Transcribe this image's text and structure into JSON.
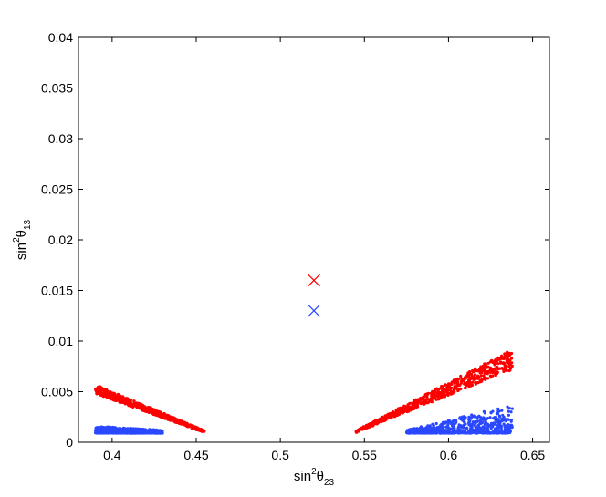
{
  "chart_data": {
    "type": "scatter",
    "xlabel": {
      "base": "sin",
      "sup": "2",
      "greek": "θ",
      "sub": "23"
    },
    "ylabel": {
      "base": "sin",
      "sup": "2",
      "greek": "θ",
      "sub": "13"
    },
    "xlim": [
      0.38,
      0.66
    ],
    "ylim": [
      0,
      0.04
    ],
    "xticks": [
      0.4,
      0.45,
      0.5,
      0.55,
      0.6,
      0.65
    ],
    "xtick_labels": [
      "0.4",
      "0.45",
      "0.5",
      "0.55",
      "0.6",
      "0.65"
    ],
    "yticks": [
      0,
      0.005,
      0.01,
      0.015,
      0.02,
      0.025,
      0.03,
      0.035,
      0.04
    ],
    "ytick_labels": [
      "0",
      "0.005",
      "0.01",
      "0.015",
      "0.02",
      "0.025",
      "0.03",
      "0.035",
      "0.04"
    ],
    "grid": false,
    "legend": "none",
    "series": [
      {
        "color": "#ff0000",
        "marker": "dot",
        "bands": [
          {
            "x_range": [
              0.39,
              0.455
            ],
            "y_at_start": [
              0.0048,
              0.0057
            ],
            "y_at_end": [
              0.00095,
              0.00115
            ]
          },
          {
            "x_range": [
              0.545,
              0.638
            ],
            "y_at_start": [
              0.00095,
              0.00115
            ],
            "y_at_end": [
              0.0072,
              0.0092
            ]
          }
        ]
      },
      {
        "color": "#2a48ff",
        "marker": "dot",
        "bands": [
          {
            "x_range": [
              0.39,
              0.43
            ],
            "y_at_start": [
              0.0009,
              0.0016
            ],
            "y_at_end": [
              0.0009,
              0.0012
            ]
          },
          {
            "x_range": [
              0.575,
              0.638
            ],
            "y_at_start": [
              0.0009,
              0.0012
            ],
            "y_at_end": [
              0.0009,
              0.0037
            ]
          }
        ]
      }
    ],
    "markers": [
      {
        "x": 0.52,
        "y": 0.016,
        "symbol": "x",
        "color": "#ff0000"
      },
      {
        "x": 0.52,
        "y": 0.013,
        "symbol": "x",
        "color": "#2a48ff"
      }
    ]
  }
}
